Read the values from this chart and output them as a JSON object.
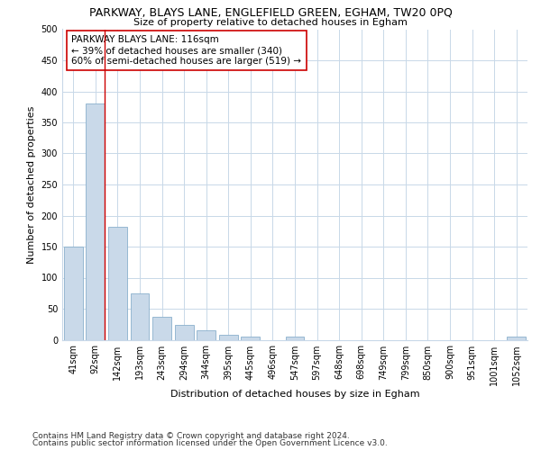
{
  "title": "PARKWAY, BLAYS LANE, ENGLEFIELD GREEN, EGHAM, TW20 0PQ",
  "subtitle": "Size of property relative to detached houses in Egham",
  "xlabel": "Distribution of detached houses by size in Egham",
  "ylabel": "Number of detached properties",
  "categories": [
    "41sqm",
    "92sqm",
    "142sqm",
    "193sqm",
    "243sqm",
    "294sqm",
    "344sqm",
    "395sqm",
    "445sqm",
    "496sqm",
    "547sqm",
    "597sqm",
    "648sqm",
    "698sqm",
    "749sqm",
    "799sqm",
    "850sqm",
    "900sqm",
    "951sqm",
    "1001sqm",
    "1052sqm"
  ],
  "values": [
    150,
    380,
    182,
    75,
    37,
    24,
    15,
    8,
    5,
    0,
    5,
    0,
    0,
    0,
    0,
    0,
    0,
    0,
    0,
    0,
    5
  ],
  "bar_color": "#c9d9e9",
  "bar_edge_color": "#8ab0cc",
  "marker_color": "#cc0000",
  "annotation_text": "PARKWAY BLAYS LANE: 116sqm\n← 39% of detached houses are smaller (340)\n60% of semi-detached houses are larger (519) →",
  "annotation_box_color": "#ffffff",
  "annotation_box_edge": "#cc0000",
  "ylim": [
    0,
    500
  ],
  "yticks": [
    0,
    50,
    100,
    150,
    200,
    250,
    300,
    350,
    400,
    450,
    500
  ],
  "footer_line1": "Contains HM Land Registry data © Crown copyright and database right 2024.",
  "footer_line2": "Contains public sector information licensed under the Open Government Licence v3.0.",
  "background_color": "#ffffff",
  "grid_color": "#c8d8e8",
  "title_fontsize": 9,
  "subtitle_fontsize": 8,
  "axis_label_fontsize": 8,
  "tick_fontsize": 7,
  "annotation_fontsize": 7.5,
  "footer_fontsize": 6.5
}
